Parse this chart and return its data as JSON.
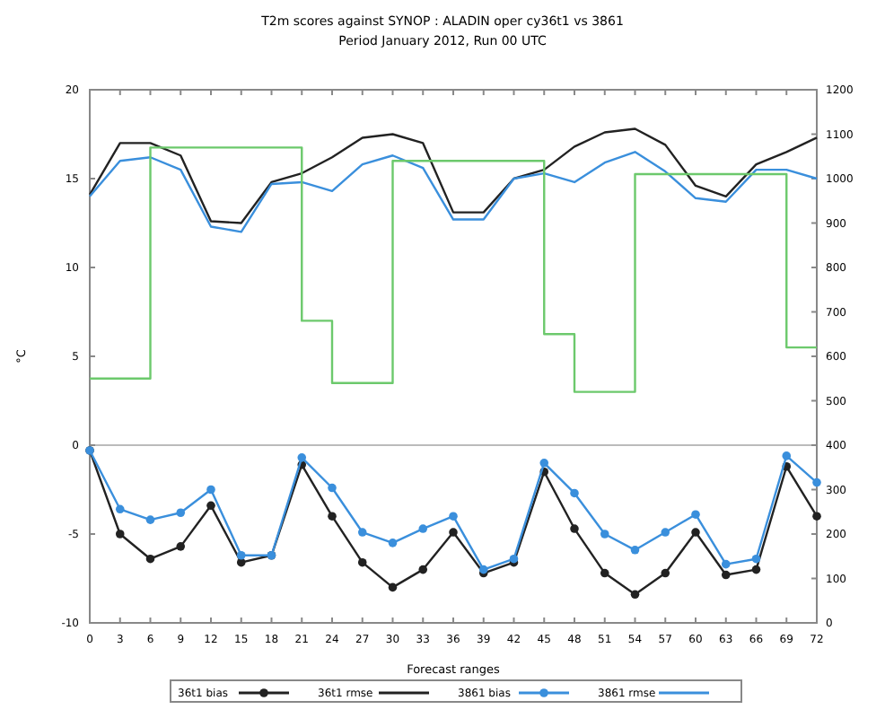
{
  "chart_data": {
    "type": "line",
    "title": "T2m scores against SYNOP : ALADIN oper cy36t1 vs 3861",
    "subtitle": "Period January 2012, Run 00 UTC",
    "xlabel": "Forecast ranges",
    "ylabel": "°C",
    "x": [
      0,
      3,
      6,
      9,
      12,
      15,
      18,
      21,
      24,
      27,
      30,
      33,
      36,
      39,
      42,
      45,
      48,
      51,
      54,
      57,
      60,
      63,
      66,
      69,
      72
    ],
    "xlim": [
      0,
      72
    ],
    "xticks": [
      0,
      3,
      6,
      9,
      12,
      15,
      18,
      21,
      24,
      27,
      30,
      33,
      36,
      39,
      42,
      45,
      48,
      51,
      54,
      57,
      60,
      63,
      66,
      69,
      72
    ],
    "ylim": [
      -10,
      20
    ],
    "yticks": [
      -10,
      -5,
      0,
      5,
      10,
      15,
      20
    ],
    "y2lim": [
      0,
      1200
    ],
    "y2ticks": [
      0,
      100,
      200,
      300,
      400,
      500,
      600,
      700,
      800,
      900,
      1000,
      1100,
      1200
    ],
    "ref_lines": [
      {
        "axis": "y",
        "value": 0,
        "color": "#bbbbbb"
      }
    ],
    "legend": "bottom",
    "series": [
      {
        "name": "36t1 bias",
        "color": "#222222",
        "marker": "circle",
        "values": [
          -0.3,
          -5.0,
          -6.4,
          -5.7,
          -3.4,
          -6.6,
          -6.2,
          -1.1,
          -4.0,
          -6.6,
          -8.0,
          -7.0,
          -4.9,
          -7.2,
          -6.6,
          -1.5,
          -4.7,
          -7.2,
          -8.4,
          -7.2,
          -4.9,
          -7.3,
          -7.0,
          -1.2,
          -4.0
        ]
      },
      {
        "name": "36t1 rmse",
        "color": "#222222",
        "marker": "none",
        "values": [
          14.1,
          17.0,
          17.0,
          16.3,
          12.6,
          12.5,
          14.8,
          15.3,
          16.2,
          17.3,
          17.5,
          17.0,
          13.1,
          13.1,
          15.0,
          15.5,
          16.8,
          17.6,
          17.8,
          16.9,
          14.6,
          14.0,
          15.8,
          16.5,
          17.3
        ]
      },
      {
        "name": "3861 bias",
        "color": "#3a8fdc",
        "marker": "circle",
        "values": [
          -0.3,
          -3.6,
          -4.2,
          -3.8,
          -2.5,
          -6.2,
          -6.2,
          -0.7,
          -2.4,
          -4.9,
          -5.5,
          -4.7,
          -4.0,
          -7.0,
          -6.4,
          -1.0,
          -2.7,
          -5.0,
          -5.9,
          -4.9,
          -3.9,
          -6.7,
          -6.4,
          -0.6,
          -2.1
        ]
      },
      {
        "name": "3861 rmse",
        "color": "#3a8fdc",
        "marker": "none",
        "values": [
          14.0,
          16.0,
          16.2,
          15.5,
          12.3,
          12.0,
          14.7,
          14.8,
          14.3,
          15.8,
          16.3,
          15.6,
          12.7,
          12.7,
          15.0,
          15.3,
          14.8,
          15.9,
          16.5,
          15.4,
          13.9,
          13.7,
          15.5,
          15.5,
          15.0
        ]
      },
      {
        "type": "step",
        "axis": "y2",
        "color": "#6cc96c",
        "marker": "none",
        "x": [
          0,
          6,
          21,
          24,
          30,
          45,
          48,
          54,
          69,
          72
        ],
        "values": [
          550,
          1070,
          680,
          540,
          1040,
          650,
          520,
          1010,
          620,
          620
        ]
      }
    ]
  }
}
